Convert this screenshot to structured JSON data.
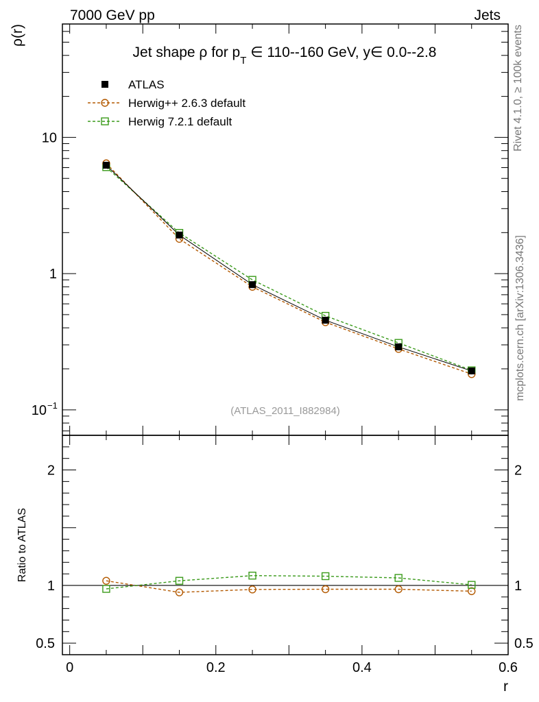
{
  "header": {
    "energy_label": "7000 GeV pp",
    "category_label": "Jets"
  },
  "side": {
    "rivet_label": "Rivet 4.1.0, ≥ 100k events",
    "source_label": "mcplots.cern.ch [arXiv:1306.3436]"
  },
  "colors": {
    "atlas": "#000000",
    "herwig_old": "#b35900",
    "herwig_new": "#3a9a1a"
  },
  "chart_data": {
    "type": "line",
    "title": "Jet shape ρ for p_T ∈ 110--160 GeV, y∈ 0.0--2.8",
    "title_parts": {
      "prefix": "Jet shape ρ for p",
      "subscript": "T",
      "suffix": " ∈ 110--160 GeV, y∈ 0.0--2.8"
    },
    "analysis_label": "(ATLAS_2011_I882984)",
    "xlabel": "r",
    "ylabel": "ρ(r)",
    "ratio_ylabel": "Ratio to ATLAS",
    "xlim": [
      -0.01,
      0.6
    ],
    "ylim": [
      0.065,
      68
    ],
    "yscale": "log",
    "ratio_ylim": [
      0.4,
      2.3
    ],
    "x_ticks": [
      {
        "value": 0,
        "label": "0"
      },
      {
        "value": 0.2,
        "label": "0.2"
      },
      {
        "value": 0.4,
        "label": "0.4"
      },
      {
        "value": 0.6,
        "label": "0.6"
      }
    ],
    "y_ticks_main": [
      {
        "value": 10,
        "label": "10"
      },
      {
        "value": 1,
        "label": "1"
      },
      {
        "value": 0.1,
        "label": "10",
        "sup": "−1"
      }
    ],
    "ratio_ticks": [
      {
        "value": 2,
        "label": "2"
      },
      {
        "value": 1,
        "label": "1"
      },
      {
        "value": 0.5,
        "label": "0.5"
      }
    ],
    "x": [
      0.05,
      0.15,
      0.25,
      0.35,
      0.45,
      0.55
    ],
    "series": [
      {
        "name": "ATLAS",
        "marker": "filled-square",
        "color": "#000000",
        "values": [
          6.25,
          1.92,
          0.83,
          0.455,
          0.29,
          0.193
        ]
      },
      {
        "name": "Herwig++ 2.6.3 default",
        "marker": "open-circle",
        "color": "#b35900",
        "values": [
          6.45,
          1.8,
          0.8,
          0.44,
          0.28,
          0.183
        ]
      },
      {
        "name": "Herwig 7.2.1 default",
        "marker": "open-square",
        "color": "#3a9a1a",
        "values": [
          6.05,
          1.99,
          0.9,
          0.49,
          0.31,
          0.195
        ]
      }
    ],
    "ratio_series": [
      {
        "name": "Herwig++ 2.6.3 default",
        "color": "#b35900",
        "marker": "open-circle",
        "values": [
          1.04,
          0.94,
          0.965,
          0.967,
          0.967,
          0.95
        ]
      },
      {
        "name": "Herwig 7.2.1 default",
        "color": "#3a9a1a",
        "marker": "open-square",
        "values": [
          0.97,
          1.04,
          1.085,
          1.08,
          1.065,
          1.005
        ]
      }
    ],
    "legend": [
      {
        "label": "ATLAS",
        "marker": "filled-square",
        "color": "#000000"
      },
      {
        "label": "Herwig++ 2.6.3 default",
        "marker": "open-circle",
        "color": "#b35900"
      },
      {
        "label": "Herwig 7.2.1 default",
        "marker": "open-square",
        "color": "#3a9a1a"
      }
    ]
  }
}
